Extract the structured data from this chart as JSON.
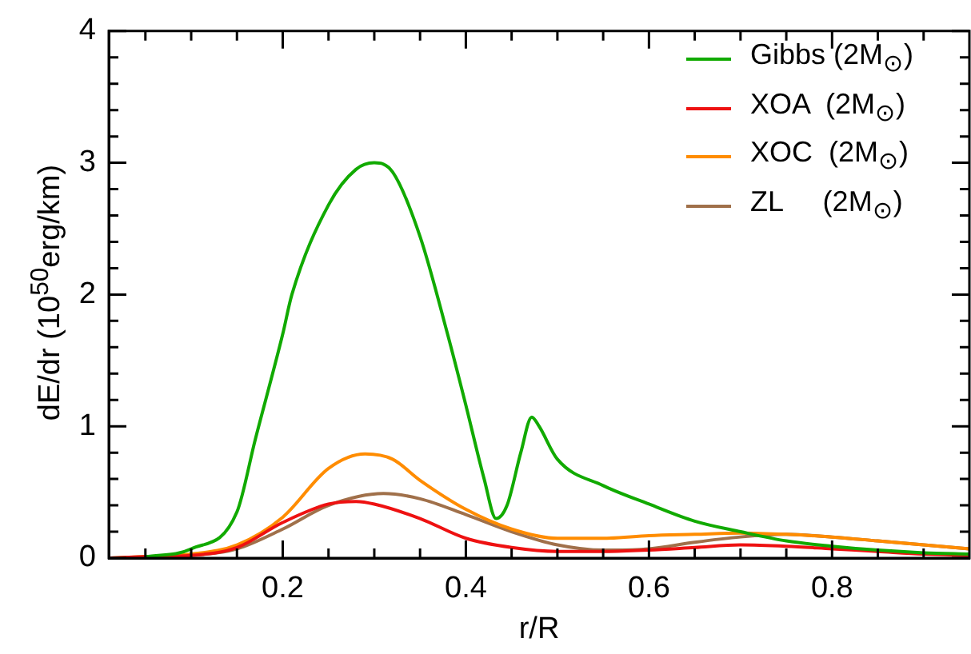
{
  "chart_data": {
    "type": "line",
    "xlabel": "r/R",
    "ylabel": "dE/dr (10$^{50}$erg/km)",
    "xlim": [
      0.01,
      0.95
    ],
    "ylim": [
      0,
      4
    ],
    "xticks": [
      {
        "value": 0.05,
        "label": null
      },
      {
        "value": 0.1,
        "label": null
      },
      {
        "value": 0.15,
        "label": null
      },
      0.2,
      {
        "value": 0.25,
        "label": null
      },
      {
        "value": 0.3,
        "label": null
      },
      {
        "value": 0.35,
        "label": null
      },
      0.4,
      {
        "value": 0.45,
        "label": null
      },
      {
        "value": 0.5,
        "label": null
      },
      {
        "value": 0.55,
        "label": null
      },
      0.6,
      {
        "value": 0.65,
        "label": null
      },
      {
        "value": 0.7,
        "label": null
      },
      {
        "value": 0.75,
        "label": null
      },
      0.8,
      {
        "value": 0.85,
        "label": null
      },
      {
        "value": 0.9,
        "label": null
      }
    ],
    "yticks": [
      0,
      {
        "value": 0.2,
        "label": null
      },
      {
        "value": 0.4,
        "label": null
      },
      {
        "value": 0.6,
        "label": null
      },
      {
        "value": 0.8,
        "label": null
      },
      1,
      {
        "value": 1.2,
        "label": null
      },
      {
        "value": 1.4,
        "label": null
      },
      {
        "value": 1.6,
        "label": null
      },
      {
        "value": 1.8,
        "label": null
      },
      2,
      {
        "value": 2.2,
        "label": null
      },
      {
        "value": 2.4,
        "label": null
      },
      {
        "value": 2.6,
        "label": null
      },
      {
        "value": 2.8,
        "label": null
      },
      3,
      {
        "value": 3.2,
        "label": null
      },
      {
        "value": 3.4,
        "label": null
      },
      {
        "value": 3.6,
        "label": null
      },
      {
        "value": 3.8,
        "label": null
      },
      4
    ],
    "grid": false,
    "legend": "top right",
    "marker": "none",
    "line_style": "solid",
    "series": [
      {
        "name": "Gibbs (2M$_{⊙}$)",
        "color": "#11aa00",
        "x": [
          0.05,
          0.1,
          0.15,
          0.17,
          0.2,
          0.21,
          0.25,
          0.28,
          0.3,
          0.32,
          0.35,
          0.38,
          0.4,
          0.42,
          0.433,
          0.445,
          0.46,
          0.472,
          0.48,
          0.5,
          0.55,
          0.6,
          0.65,
          0.7,
          0.75,
          0.8,
          0.85,
          0.9,
          0.95
        ],
        "values": [
          0.01,
          0.07,
          0.35,
          0.9,
          1.7,
          2.0,
          2.68,
          2.95,
          3.0,
          2.93,
          2.44,
          1.7,
          1.16,
          0.6,
          0.3,
          0.4,
          0.8,
          1.07,
          1.0,
          0.75,
          0.55,
          0.41,
          0.28,
          0.2,
          0.13,
          0.09,
          0.06,
          0.04,
          0.03
        ]
      },
      {
        "name": "XOA  (2M$_{⊙}$)",
        "color": "#ee1111",
        "x": [
          0.01,
          0.05,
          0.1,
          0.15,
          0.2,
          0.25,
          0.28,
          0.3,
          0.35,
          0.4,
          0.45,
          0.5,
          0.55,
          0.6,
          0.65,
          0.7,
          0.75,
          0.8,
          0.85,
          0.9,
          0.95
        ],
        "values": [
          0,
          0.01,
          0.02,
          0.08,
          0.27,
          0.41,
          0.43,
          0.41,
          0.3,
          0.15,
          0.08,
          0.05,
          0.05,
          0.06,
          0.08,
          0.1,
          0.09,
          0.07,
          0.05,
          0.03,
          0.02
        ]
      },
      {
        "name": "XOC  (2M$_{⊙}$)",
        "color": "#ff8c00",
        "x": [
          0.01,
          0.05,
          0.1,
          0.15,
          0.2,
          0.25,
          0.29,
          0.32,
          0.35,
          0.4,
          0.45,
          0.5,
          0.55,
          0.6,
          0.65,
          0.7,
          0.75,
          0.8,
          0.85,
          0.9,
          0.95
        ],
        "values": [
          0,
          0.01,
          0.03,
          0.1,
          0.31,
          0.68,
          0.79,
          0.75,
          0.59,
          0.37,
          0.22,
          0.15,
          0.15,
          0.17,
          0.18,
          0.19,
          0.18,
          0.16,
          0.13,
          0.1,
          0.07
        ]
      },
      {
        "name": "ZL     (2M$_{⊙}$)",
        "color": "#a0704a",
        "x": [
          0.01,
          0.05,
          0.1,
          0.15,
          0.2,
          0.25,
          0.31,
          0.35,
          0.4,
          0.45,
          0.5,
          0.55,
          0.6,
          0.65,
          0.7,
          0.75,
          0.8,
          0.85,
          0.9,
          0.95
        ],
        "values": [
          0,
          0.01,
          0.02,
          0.07,
          0.22,
          0.4,
          0.49,
          0.45,
          0.33,
          0.2,
          0.1,
          0.06,
          0.07,
          0.12,
          0.16,
          0.18,
          0.16,
          0.13,
          0.1,
          0.07
        ]
      }
    ]
  }
}
